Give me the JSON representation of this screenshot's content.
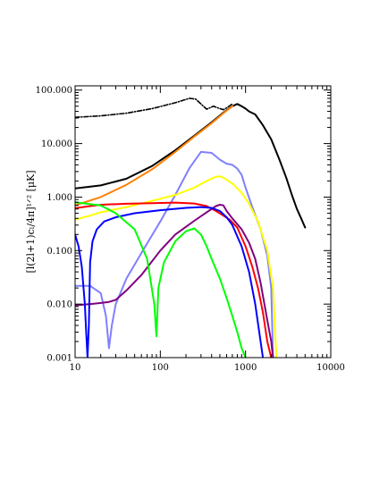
{
  "chart_data": {
    "type": "line",
    "xscale": "log",
    "yscale": "log",
    "xlim": [
      10,
      10000
    ],
    "ylim": [
      0.001,
      120
    ],
    "ylabel": "[l(2l+1)cₗ/4π]¹ᐟ² [μK]",
    "xlabel": "",
    "title": "",
    "grid": false,
    "x_ticks": [
      {
        "value": 10,
        "label": "10"
      },
      {
        "value": 100,
        "label": "100"
      },
      {
        "value": 1000,
        "label": "1000"
      },
      {
        "value": 10000,
        "label": "10000"
      }
    ],
    "y_ticks": [
      {
        "value": 0.001,
        "label": "0.001"
      },
      {
        "value": 0.01,
        "label": "0.010"
      },
      {
        "value": 0.1,
        "label": "0.100"
      },
      {
        "value": 1,
        "label": "1.000"
      },
      {
        "value": 10,
        "label": "10.000"
      },
      {
        "value": 100,
        "label": "100.000"
      }
    ],
    "series": [
      {
        "color": "#000000",
        "style": "dashdot",
        "x": [
          10,
          20,
          40,
          80,
          150,
          220,
          260,
          300,
          350,
          420,
          500,
          550,
          620,
          700
        ],
        "y": [
          31,
          33,
          37,
          45,
          58,
          70,
          68,
          55,
          44,
          50,
          45,
          43,
          48,
          55
        ]
      },
      {
        "color": "#000000",
        "style": "solid",
        "x": [
          10,
          20,
          40,
          80,
          150,
          250,
          400,
          550,
          700,
          800,
          900,
          1000,
          1100,
          1300,
          1600,
          2000,
          2500,
          3000,
          3500,
          4000,
          4500,
          5000
        ],
        "y": [
          1.45,
          1.65,
          2.2,
          3.8,
          7.5,
          14,
          25,
          38,
          50,
          55,
          50,
          45,
          40,
          35,
          22,
          12,
          5,
          2.3,
          1.1,
          0.6,
          0.4,
          0.27
        ]
      },
      {
        "color": "#ff8000",
        "style": "solid",
        "x": [
          10,
          20,
          40,
          80,
          150,
          250,
          400,
          550,
          700
        ],
        "y": [
          0.7,
          1.0,
          1.7,
          3.3,
          7,
          13.5,
          24,
          37,
          50
        ]
      },
      {
        "color": "#8080ff",
        "style": "solid",
        "x": [
          10,
          15,
          20,
          23,
          25,
          27,
          30,
          40,
          60,
          100,
          150,
          220,
          300,
          400,
          500,
          600,
          700,
          800,
          900,
          1000,
          1200,
          1500,
          1800,
          2000,
          2100
        ],
        "y": [
          0.022,
          0.022,
          0.016,
          0.006,
          0.0015,
          0.004,
          0.01,
          0.03,
          0.09,
          0.35,
          1.1,
          3.5,
          7.0,
          6.7,
          5.0,
          4.2,
          4.0,
          3.4,
          2.6,
          1.5,
          0.65,
          0.25,
          0.08,
          0.02,
          0.001
        ]
      },
      {
        "color": "#ffff00",
        "style": "solid",
        "x": [
          10,
          15,
          20,
          40,
          80,
          150,
          250,
          350,
          450,
          500,
          550,
          700,
          900,
          1100,
          1400,
          1800,
          2100,
          2300
        ],
        "y": [
          0.38,
          0.45,
          0.52,
          0.65,
          0.85,
          1.1,
          1.5,
          2.0,
          2.4,
          2.45,
          2.3,
          1.8,
          1.2,
          0.75,
          0.35,
          0.1,
          0.02,
          0.001
        ]
      },
      {
        "color": "#ff0000",
        "style": "solid",
        "x": [
          10,
          15,
          20,
          40,
          80,
          150,
          250,
          350,
          450,
          550,
          650,
          800,
          1000,
          1200,
          1400,
          1600,
          1800,
          2000
        ],
        "y": [
          0.62,
          0.68,
          0.72,
          0.75,
          0.77,
          0.79,
          0.76,
          0.68,
          0.55,
          0.45,
          0.38,
          0.27,
          0.12,
          0.05,
          0.02,
          0.007,
          0.002,
          0.001
        ]
      },
      {
        "color": "#800080",
        "style": "solid",
        "x": [
          10,
          15,
          20,
          25,
          30,
          40,
          60,
          100,
          150,
          250,
          350,
          450,
          500,
          550,
          600,
          700,
          900,
          1100,
          1300,
          1500,
          1800,
          2000,
          2100
        ],
        "y": [
          0.0095,
          0.01,
          0.0105,
          0.011,
          0.012,
          0.018,
          0.035,
          0.1,
          0.2,
          0.36,
          0.52,
          0.68,
          0.72,
          0.7,
          0.55,
          0.4,
          0.25,
          0.14,
          0.07,
          0.025,
          0.005,
          0.002,
          0.001
        ]
      },
      {
        "color": "#0000ff",
        "style": "solid",
        "x": [
          10,
          11,
          12,
          13,
          13.5,
          14,
          14.5,
          15,
          16,
          18,
          22,
          30,
          50,
          100,
          200,
          300,
          400,
          500,
          600,
          700,
          900,
          1100,
          1300,
          1500,
          1600
        ],
        "y": [
          0.2,
          0.12,
          0.05,
          0.01,
          0.003,
          0.001,
          0.004,
          0.06,
          0.15,
          0.25,
          0.35,
          0.42,
          0.5,
          0.57,
          0.63,
          0.65,
          0.63,
          0.55,
          0.42,
          0.3,
          0.12,
          0.04,
          0.01,
          0.002,
          0.001
        ]
      },
      {
        "color": "#00ff00",
        "style": "solid",
        "x": [
          10,
          20,
          30,
          50,
          70,
          85,
          90,
          95,
          110,
          150,
          200,
          250,
          300,
          350,
          400,
          500,
          600,
          700,
          800,
          900,
          1000
        ],
        "y": [
          0.8,
          0.7,
          0.5,
          0.25,
          0.07,
          0.01,
          0.0025,
          0.02,
          0.06,
          0.15,
          0.23,
          0.26,
          0.2,
          0.12,
          0.07,
          0.03,
          0.013,
          0.006,
          0.003,
          0.0015,
          0.001
        ]
      }
    ]
  }
}
